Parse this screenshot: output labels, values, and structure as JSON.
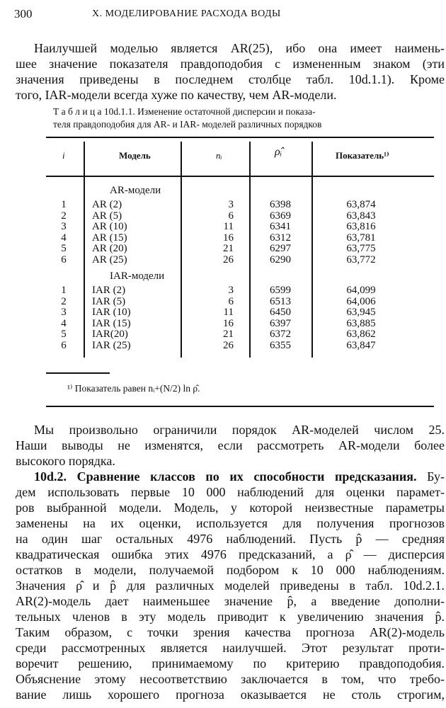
{
  "header": {
    "page_number": "300",
    "running_title": "X. МОДЕЛИРОВАНИЕ РАСХОДА ВОДЫ"
  },
  "paragraph1": [
    "Наилучшей моделью является AR(25), ибо она имеет наимень-",
    "шее значение показателя правдоподобия с измененным знаком (эти",
    "значения приведены в последнем столбце табл. 10d.1.1). Кроме",
    "того, IAR-модели всегда хуже по качеству, чем AR-модели."
  ],
  "table": {
    "caption": [
      "Т а б л и ц а 10d.1.1. Изменение остаточной дисперсии и показа-",
      "теля правдоподобия для AR- и IAR- моделей различных порядков"
    ],
    "headers": [
      "i",
      "Модель",
      "nᵢ",
      "ρ̂ᵢ",
      "Показатель¹⁾"
    ],
    "groups": [
      {
        "label": "AR-модели",
        "rows": [
          [
            "1",
            "AR (2)",
            "3",
            "6398",
            "63,874"
          ],
          [
            "2",
            "AR (5)",
            "6",
            "6369",
            "63,843"
          ],
          [
            "3",
            "AR (10)",
            "11",
            "6341",
            "63,816"
          ],
          [
            "4",
            "AR (15)",
            "16",
            "6312",
            "63,781"
          ],
          [
            "5",
            "AR (20)",
            "21",
            "6297",
            "63,775"
          ],
          [
            "6",
            "AR (25)",
            "26",
            "6290",
            "63,772"
          ]
        ]
      },
      {
        "label": "IAR-модели",
        "rows": [
          [
            "1",
            "IAR (2)",
            "3",
            "6599",
            "64,099"
          ],
          [
            "2",
            "IAR (5)",
            "6",
            "6513",
            "64,006"
          ],
          [
            "3",
            "IAR (10)",
            "11",
            "6450",
            "63,945"
          ],
          [
            "4",
            "IAR (15)",
            "16",
            "6397",
            "63,885"
          ],
          [
            "5",
            "IAR(20)",
            "21",
            "6372",
            "63,862"
          ],
          [
            "6",
            "IAR (25)",
            "26",
            "6355",
            "63,847"
          ]
        ]
      }
    ],
    "footnote": "¹⁾ Показатель равен nᵢ+(N/2) ln ρ̂."
  },
  "paragraph2": [
    "Мы произвольно ограничили порядок AR-моделей числом 25.",
    "Наши выводы не изменятся, если рассмотреть AR-модели более",
    "высокого порядка."
  ],
  "section": {
    "heading": "10d.2. Сравнение классов по их способности предсказания.",
    "first_line_rest": "Бу-",
    "lines": [
      "дем использовать первые 10 000 наблюдений для оценки парамет-",
      "ров выбранной модели. Модель, у которой неизвестные параметры",
      "заменены на их оценки, используется для получения прогнозов",
      "на один шаг остальных 4976 наблюдений. Пусть p̂ — средняя",
      "квадратическая ошибка этих 4976 предсказаний, а ρ̂ — дисперсия",
      "остатков в модели, получаемой подбором к 10 000 наблюдениям.",
      "Значения ρ̂ и p̂ для различных моделей приведены в табл. 10d.2.1.",
      "AR(2)-модель дает наименьшее значение p̂, а введение дополни-",
      "тельных членов в эту модель приводит к увеличению значения p̂.",
      "Таким образом, с точки зрения качества прогноза AR(2)-модель",
      "среди рассмотренных является наилучшей. Этот результат проти-",
      "воречит решению, принимаемому по критерию правдоподобия.",
      "Объяснение этому несоответствию заключается в том, что требо-",
      "вание лишь хорошего прогноза оказывается не столь строгим,"
    ]
  }
}
